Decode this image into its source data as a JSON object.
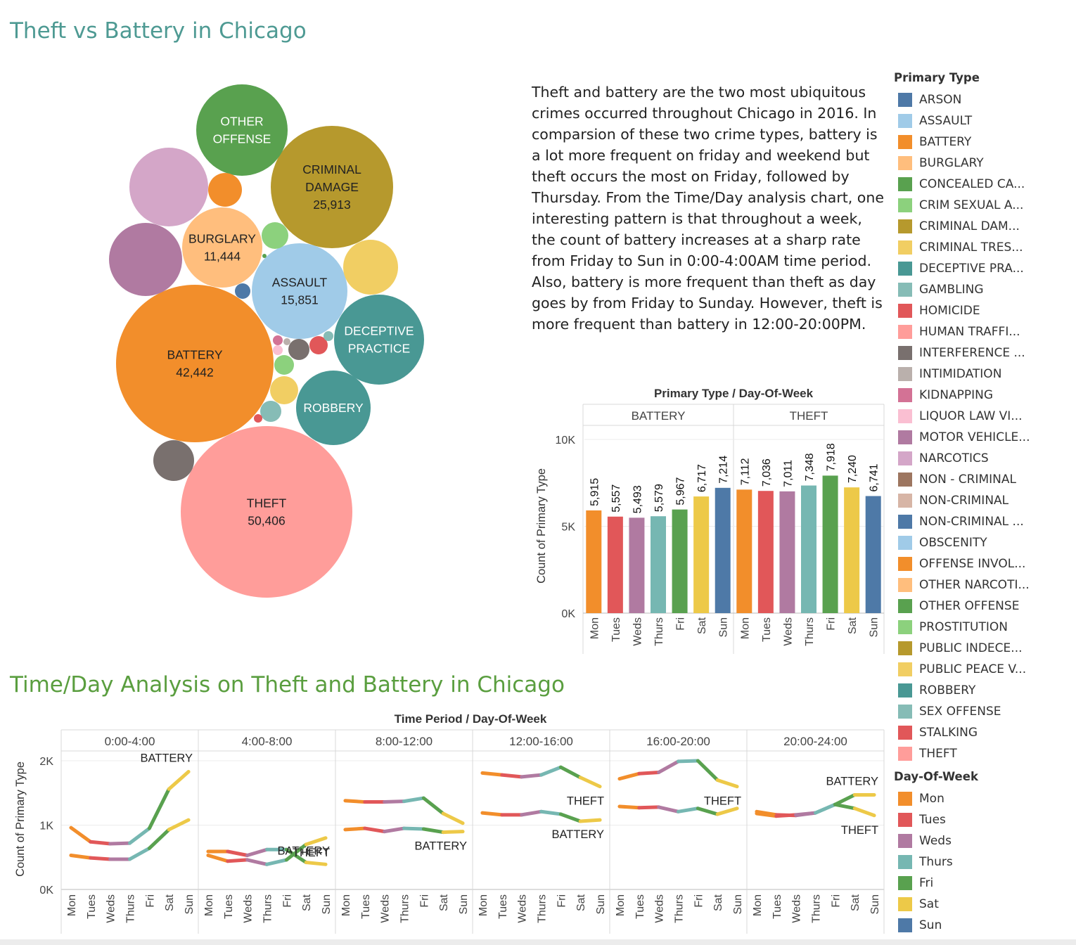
{
  "titles": {
    "main": "Theft vs Battery in Chicago",
    "sub": "Time/Day Analysis on Theft and Battery in Chicago"
  },
  "description": "Theft and battery are the two most ubiquitous crimes occurred throughout Chicago in 2016. In comparsion of these two crime types, battery is a lot more frequent on friday and weekend but theft occurs the most on Friday, followed by Thursday. From the Time/Day analysis chart, one interesting pattern is that throughout a week, the count of battery increases at a sharp rate from Friday to Sun in 0:00-4:00AM time period.  Also, battery is more frequent than theft as day goes by from Friday to Sunday. However, theft is more frequent than battery in 12:00-20:00PM.",
  "legend_primary": {
    "title": "Primary Type",
    "items": [
      {
        "label": "ARSON",
        "color": "#4e79a7"
      },
      {
        "label": "ASSAULT",
        "color": "#a0cbe8"
      },
      {
        "label": "BATTERY",
        "color": "#f28e2b"
      },
      {
        "label": "BURGLARY",
        "color": "#ffbe7d"
      },
      {
        "label": "CONCEALED CA...",
        "color": "#59a14f"
      },
      {
        "label": "CRIM SEXUAL A...",
        "color": "#8cd17d"
      },
      {
        "label": "CRIMINAL DAM...",
        "color": "#b6992d"
      },
      {
        "label": "CRIMINAL TRES...",
        "color": "#f1ce63"
      },
      {
        "label": "DECEPTIVE PRA...",
        "color": "#499894"
      },
      {
        "label": "GAMBLING",
        "color": "#86bcb6"
      },
      {
        "label": "HOMICIDE",
        "color": "#e15759"
      },
      {
        "label": "HUMAN TRAFFI...",
        "color": "#ff9d9a"
      },
      {
        "label": "INTERFERENCE ...",
        "color": "#79706e"
      },
      {
        "label": "INTIMIDATION",
        "color": "#bab0ac"
      },
      {
        "label": "KIDNAPPING",
        "color": "#d37295"
      },
      {
        "label": "LIQUOR LAW VI...",
        "color": "#fabfd2"
      },
      {
        "label": "MOTOR VEHICLE...",
        "color": "#b07aa1"
      },
      {
        "label": "NARCOTICS",
        "color": "#d4a6c8"
      },
      {
        "label": "NON - CRIMINAL",
        "color": "#9d7660"
      },
      {
        "label": "NON-CRIMINAL",
        "color": "#d7b5a6"
      },
      {
        "label": "NON-CRIMINAL ...",
        "color": "#4e79a7"
      },
      {
        "label": "OBSCENITY",
        "color": "#a0cbe8"
      },
      {
        "label": "OFFENSE INVOL...",
        "color": "#f28e2b"
      },
      {
        "label": "OTHER NARCOTI...",
        "color": "#ffbe7d"
      },
      {
        "label": "OTHER OFFENSE",
        "color": "#59a14f"
      },
      {
        "label": "PROSTITUTION",
        "color": "#8cd17d"
      },
      {
        "label": "PUBLIC INDECE...",
        "color": "#b6992d"
      },
      {
        "label": "PUBLIC PEACE V...",
        "color": "#f1ce63"
      },
      {
        "label": "ROBBERY",
        "color": "#499894"
      },
      {
        "label": "SEX OFFENSE",
        "color": "#86bcb6"
      },
      {
        "label": "STALKING",
        "color": "#e15759"
      },
      {
        "label": "THEFT",
        "color": "#ff9d9a"
      }
    ]
  },
  "legend_day": {
    "title": "Day-Of-Week",
    "items": [
      {
        "label": "Mon",
        "color": "#f28e2b"
      },
      {
        "label": "Tues",
        "color": "#e15759"
      },
      {
        "label": "Weds",
        "color": "#b07aa1"
      },
      {
        "label": "Thurs",
        "color": "#76b7b2"
      },
      {
        "label": "Fri",
        "color": "#59a14f"
      },
      {
        "label": "Sat",
        "color": "#edc948"
      },
      {
        "label": "Sun",
        "color": "#4e79a7"
      }
    ]
  },
  "chart_data": [
    {
      "type": "bubble",
      "bubbles": [
        {
          "label": "THEFT",
          "value": "50,406",
          "color": "#ff9d9a"
        },
        {
          "label": "BATTERY",
          "value": "42,442",
          "color": "#f28e2b"
        },
        {
          "label": "CRIMINAL DAMAGE",
          "value": "25,913",
          "color": "#b6992d"
        },
        {
          "label": "ASSAULT",
          "value": "15,851",
          "color": "#a0cbe8"
        },
        {
          "label": "BURGLARY",
          "value": "11,444",
          "color": "#ffbe7d"
        },
        {
          "label": "DECEPTIVE PRACTICE",
          "value": "",
          "color": "#499894"
        },
        {
          "label": "ROBBERY",
          "value": "",
          "color": "#499894"
        },
        {
          "label": "OTHER OFFENSE",
          "value": "",
          "color": "#59a14f"
        },
        {
          "label": "",
          "value": "",
          "color": "#d4a6c8"
        },
        {
          "label": "",
          "value": "",
          "color": "#b07aa1"
        },
        {
          "label": "",
          "value": "",
          "color": "#f1ce63"
        },
        {
          "label": "",
          "value": "",
          "color": "#79706e"
        },
        {
          "label": "",
          "value": "",
          "color": "#f28e2b"
        },
        {
          "label": "",
          "value": "",
          "color": "#8cd17d"
        },
        {
          "label": "",
          "value": "",
          "color": "#4e79a7"
        },
        {
          "label": "",
          "value": "",
          "color": "#e15759"
        },
        {
          "label": "",
          "value": "",
          "color": "#f1ce63"
        },
        {
          "label": "",
          "value": "",
          "color": "#8cd17d"
        },
        {
          "label": "",
          "value": "",
          "color": "#86bcb6"
        },
        {
          "label": "",
          "value": "",
          "color": "#79706e"
        },
        {
          "label": "",
          "value": "",
          "color": "#d37295"
        },
        {
          "label": "",
          "value": "",
          "color": "#fabfd2"
        },
        {
          "label": "",
          "value": "",
          "color": "#bab0ac"
        },
        {
          "label": "",
          "value": "",
          "color": "#e15759"
        },
        {
          "label": "",
          "value": "",
          "color": "#86bcb6"
        },
        {
          "label": "",
          "value": "",
          "color": "#59a14f"
        }
      ]
    },
    {
      "type": "bar",
      "header": "Primary Type  /  Day-Of-Week",
      "panels": [
        {
          "name": "BATTERY",
          "values": [
            5915,
            5557,
            5493,
            5579,
            5967,
            6717,
            7214
          ]
        },
        {
          "name": "THEFT",
          "values": [
            7112,
            7036,
            7011,
            7348,
            7918,
            7240,
            6741
          ]
        }
      ],
      "categories": [
        "Mon",
        "Tues",
        "Weds",
        "Thurs",
        "Fri",
        "Sat",
        "Sun"
      ],
      "value_labels": {
        "BATTERY": [
          "5,915",
          "5,557",
          "5,493",
          "5,579",
          "5,967",
          "6,717",
          "7,214"
        ],
        "THEFT": [
          "7,112",
          "7,036",
          "7,011",
          "7,348",
          "7,918",
          "7,240",
          "6,741"
        ]
      },
      "colors": [
        "#f28e2b",
        "#e15759",
        "#b07aa1",
        "#76b7b2",
        "#59a14f",
        "#edc948",
        "#4e79a7"
      ],
      "ylabel": "Count of Primary Type",
      "yticks": [
        {
          "v": 0,
          "label": "0K"
        },
        {
          "v": 5000,
          "label": "5K"
        },
        {
          "v": 10000,
          "label": "10K"
        }
      ],
      "ylim": [
        0,
        10000
      ]
    },
    {
      "type": "line",
      "header": "Time Period  /  Day-Of-Week",
      "ylabel": "Count of Primary Type",
      "yticks": [
        {
          "v": 0,
          "label": "0K"
        },
        {
          "v": 1000,
          "label": "1K"
        },
        {
          "v": 2000,
          "label": "2K"
        }
      ],
      "ylim": [
        0,
        2200
      ],
      "categories": [
        "Mon",
        "Tues",
        "Weds",
        "Thurs",
        "Fri",
        "Sat",
        "Sun"
      ],
      "colors": [
        "#f28e2b",
        "#e15759",
        "#b07aa1",
        "#76b7b2",
        "#59a14f",
        "#edc948",
        "#4e79a7"
      ],
      "panels": [
        {
          "name": "0:00-4:00",
          "series": [
            {
              "name": "BATTERY",
              "values": [
                960,
                740,
                710,
                720,
                950,
                1560,
                1830
              ],
              "label": "BATTERY",
              "label_side": "above"
            },
            {
              "name": "THEFT",
              "values": [
                530,
                490,
                470,
                470,
                640,
                930,
                1080
              ],
              "label": "",
              "label_side": ""
            }
          ]
        },
        {
          "name": "4:00-8:00",
          "series": [
            {
              "name": "BATTERY",
              "values": [
                590,
                590,
                530,
                620,
                620,
                420,
                390
              ],
              "label": "BATTERY",
              "label_side": "above"
            },
            {
              "name": "THEFT",
              "values": [
                530,
                440,
                460,
                390,
                460,
                700,
                800
              ],
              "label": "THEFT",
              "label_side": "below"
            }
          ]
        },
        {
          "name": "8:00-12:00",
          "series": [
            {
              "name": "THEFT",
              "values": [
                1380,
                1360,
                1360,
                1370,
                1420,
                1180,
                1030
              ],
              "label": "",
              "label_side": ""
            },
            {
              "name": "BATTERY",
              "values": [
                930,
                950,
                900,
                950,
                940,
                890,
                900
              ],
              "label": "BATTERY",
              "label_side": "below"
            }
          ]
        },
        {
          "name": "12:00-16:00",
          "series": [
            {
              "name": "THEFT",
              "values": [
                1810,
                1780,
                1750,
                1780,
                1900,
                1740,
                1600
              ],
              "label": "THEFT",
              "label_side": "below"
            },
            {
              "name": "BATTERY",
              "values": [
                1190,
                1160,
                1160,
                1210,
                1170,
                1060,
                1080
              ],
              "label": "BATTERY",
              "label_side": "below"
            }
          ]
        },
        {
          "name": "16:00-20:00",
          "series": [
            {
              "name": "THEFT",
              "values": [
                1720,
                1800,
                1820,
                1990,
                2000,
                1700,
                1600
              ],
              "label": "THEFT",
              "label_side": "below"
            },
            {
              "name": "BATTERY",
              "values": [
                1290,
                1270,
                1280,
                1210,
                1260,
                1170,
                1260
              ],
              "label": "",
              "label_side": ""
            }
          ]
        },
        {
          "name": "20:00-24:00",
          "series": [
            {
              "name": "BATTERY",
              "values": [
                1210,
                1160,
                1150,
                1190,
                1320,
                1470,
                1470
              ],
              "label": "BATTERY",
              "label_side": "above"
            },
            {
              "name": "THEFT",
              "values": [
                1180,
                1140,
                1160,
                1190,
                1320,
                1260,
                1150
              ],
              "label": "THEFT",
              "label_side": "below"
            }
          ]
        }
      ]
    }
  ]
}
